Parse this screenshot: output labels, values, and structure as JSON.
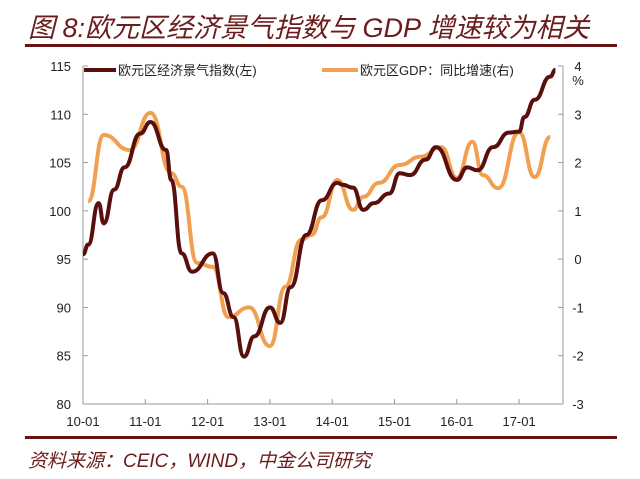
{
  "title": "图 8:欧元区经济景气指数与 GDP 增速较为相关",
  "source": "资料来源：CEIC，WIND，中金公司研究",
  "chart_data": {
    "type": "line",
    "title": "图 8:欧元区经济景气指数与 GDP 增速较为相关",
    "x_ticks": [
      "10-01",
      "11-01",
      "12-01",
      "13-01",
      "14-01",
      "15-01",
      "16-01",
      "17-01"
    ],
    "xlim": [
      "2010-01",
      "2017-10"
    ],
    "y_left": {
      "lim": [
        80,
        115
      ],
      "ticks": [
        80,
        85,
        90,
        95,
        100,
        105,
        110,
        115
      ]
    },
    "y_right": {
      "lim": [
        -3,
        4
      ],
      "ticks": [
        -3,
        -2,
        -1,
        0,
        1,
        2,
        3,
        4
      ],
      "unit": "%"
    },
    "grid": false,
    "legend": "top",
    "colors": {
      "esi": "#5a0f0f",
      "gdp": "#f0a050",
      "accent": "#6b1416"
    },
    "series": [
      {
        "name": "欧元区经济景气指数(左)",
        "axis": "left",
        "x": [
          "2010-01",
          "2010-02",
          "2010-04",
          "2010-05",
          "2010-07",
          "2010-09",
          "2010-12",
          "2011-02",
          "2011-05",
          "2011-06",
          "2011-08",
          "2011-10",
          "2012-02",
          "2012-04",
          "2012-06",
          "2012-08",
          "2012-10",
          "2013-01",
          "2013-03",
          "2013-05",
          "2013-08",
          "2013-11",
          "2014-02",
          "2014-03",
          "2014-05",
          "2014-07",
          "2014-09",
          "2014-12",
          "2015-02",
          "2015-04",
          "2015-07",
          "2015-09",
          "2016-01",
          "2016-03",
          "2016-05",
          "2016-08",
          "2016-11",
          "2017-01",
          "2017-02",
          "2017-04",
          "2017-07",
          "2017-08"
        ],
        "y": [
          95.5,
          96.5,
          100.8,
          98.7,
          102.2,
          104.5,
          108,
          109.2,
          106.3,
          103.2,
          95.6,
          93.7,
          95.6,
          91.5,
          89,
          84.9,
          87,
          90,
          88.4,
          92.1,
          97.5,
          101.1,
          102.9,
          102.7,
          102.4,
          100.1,
          100.8,
          101.8,
          103.9,
          103.7,
          105.3,
          106.6,
          103.2,
          104.5,
          104.2,
          106.6,
          108.1,
          108.2,
          109.7,
          111.5,
          113.9,
          114.6
        ]
      },
      {
        "name": "欧元区GDP：同比增速(右)",
        "axis": "right",
        "x": [
          "2010-02",
          "2010-05",
          "2010-10",
          "2011-02",
          "2011-06",
          "2011-08",
          "2011-11",
          "2012-02",
          "2012-05",
          "2012-09",
          "2013-01",
          "2013-04",
          "2013-07",
          "2013-09",
          "2013-11",
          "2014-02",
          "2014-05",
          "2014-07",
          "2014-10",
          "2015-02",
          "2015-06",
          "2015-10",
          "2016-01",
          "2016-04",
          "2016-06",
          "2016-09",
          "2017-01",
          "2017-04",
          "2017-07"
        ],
        "y": [
          1.2,
          2.57,
          2.26,
          3.03,
          1.78,
          1.5,
          -0.08,
          -0.16,
          -1.2,
          -1.0,
          -1.8,
          -0.57,
          0.4,
          0.5,
          0.87,
          1.64,
          1.02,
          1.29,
          1.58,
          1.95,
          2.12,
          2.32,
          1.68,
          2.43,
          1.74,
          1.47,
          2.63,
          1.7,
          2.53
        ]
      }
    ]
  }
}
